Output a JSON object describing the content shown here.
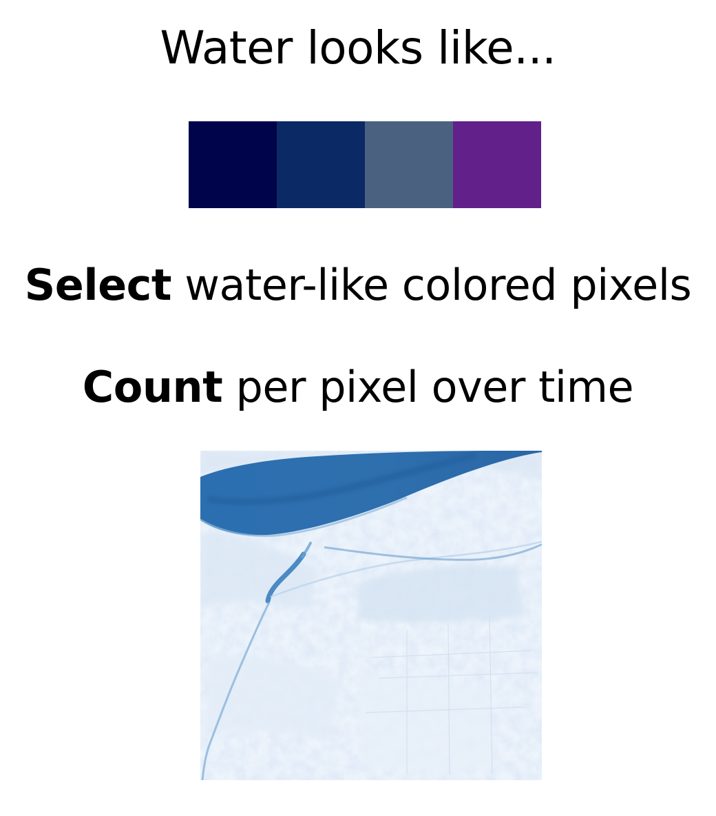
{
  "title": "Water looks like...",
  "swatches": [
    {
      "name": "dark-navy",
      "color": "#00044b"
    },
    {
      "name": "navy-blue",
      "color": "#0b2965"
    },
    {
      "name": "slate-blue",
      "color": "#4a6280"
    },
    {
      "name": "purple",
      "color": "#62208b"
    }
  ],
  "steps": {
    "select": {
      "bold": "Select",
      "rest": " water-like colored pixels"
    },
    "count": {
      "bold": "Count",
      "rest": " per pixel over time"
    }
  },
  "map": {
    "colormap": [
      "#f7fbff",
      "#deebf7",
      "#c6dbef",
      "#9ecae1",
      "#6baed6",
      "#4292c6",
      "#2171b5",
      "#08519c"
    ]
  }
}
